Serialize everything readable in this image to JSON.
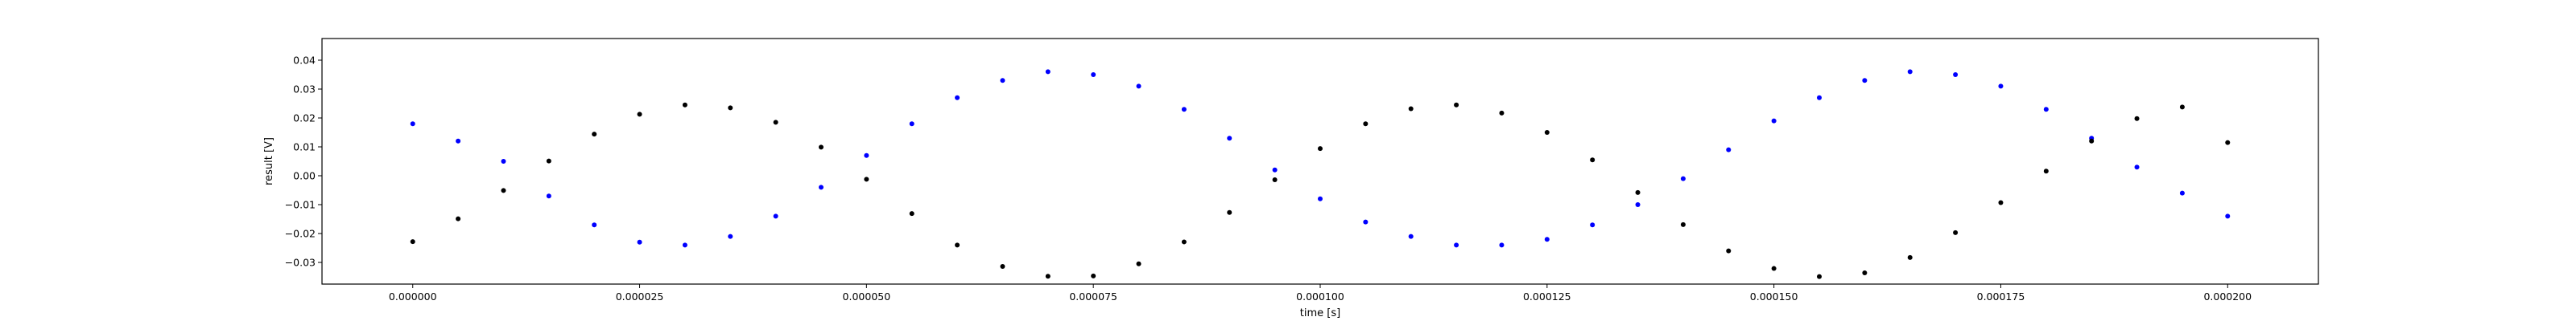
{
  "chart_data": {
    "type": "scatter",
    "title": "",
    "xlabel": "time [s]",
    "ylabel": "result [V]",
    "xlim": [
      -1e-05,
      0.00021
    ],
    "ylim": [
      -0.0375,
      0.0475
    ],
    "xticks": [
      0.0,
      2.5e-05,
      5e-05,
      7.5e-05,
      0.0001,
      0.000125,
      0.00015,
      0.000175,
      0.0002
    ],
    "xtick_labels": [
      "0.000000",
      "0.000025",
      "0.000050",
      "0.000075",
      "0.000100",
      "0.000125",
      "0.000150",
      "0.000175",
      "0.000200"
    ],
    "yticks": [
      -0.03,
      -0.02,
      -0.01,
      0.0,
      0.01,
      0.02,
      0.03,
      0.04
    ],
    "ytick_labels": [
      "−0.03",
      "−0.02",
      "−0.01",
      "0.00",
      "0.01",
      "0.02",
      "0.03",
      "0.04"
    ],
    "grid": false,
    "legend": "none",
    "series": [
      {
        "color": "#0000ff",
        "marker": "dot",
        "x": [
          0.0,
          5e-06,
          1e-05,
          1.5e-05,
          2e-05,
          2.5e-05,
          3e-05,
          3.5e-05,
          4e-05,
          4.5e-05,
          5e-05,
          5.5e-05,
          6e-05,
          6.5e-05,
          7e-05,
          7.5e-05,
          8e-05,
          8.5e-05,
          9e-05,
          9.5e-05,
          0.0001,
          0.000105,
          0.00011,
          0.000115,
          0.00012,
          0.000125,
          0.00013,
          0.000135,
          0.00014,
          0.000145,
          0.00015,
          0.000155,
          0.00016,
          0.000165,
          0.00017,
          0.000175,
          0.00018,
          0.000185,
          0.00019,
          0.000195,
          0.0002
        ],
        "y": [
          0.018,
          0.012,
          0.005,
          -0.007,
          -0.017,
          -0.023,
          -0.024,
          -0.021,
          -0.014,
          -0.004,
          0.007,
          0.018,
          0.027,
          0.033,
          0.036,
          0.035,
          0.031,
          0.023,
          0.013,
          0.002,
          -0.008,
          -0.016,
          -0.021,
          -0.024,
          -0.024,
          -0.022,
          -0.017,
          -0.01,
          -0.001,
          0.009,
          0.019,
          0.027,
          0.033,
          0.036,
          0.035,
          0.031,
          0.023,
          0.013,
          0.003,
          -0.006,
          -0.014
        ]
      },
      {
        "color": "#000000",
        "marker": "dot",
        "x": [
          0.0,
          5e-06,
          1e-05,
          1.5e-05,
          2e-05,
          2.5e-05,
          3e-05,
          3.5e-05,
          4e-05,
          4.5e-05,
          5e-05,
          5.5e-05,
          6e-05,
          6.5e-05,
          7e-05,
          7.5e-05,
          8e-05,
          8.5e-05,
          9e-05,
          9.5e-05,
          0.0001,
          0.000105,
          0.00011,
          0.000115,
          0.00012,
          0.000125,
          0.00013,
          0.000135,
          0.00014,
          0.000145,
          0.00015,
          0.000155,
          0.00016,
          0.000165,
          0.00017,
          0.000175,
          0.00018,
          0.000185,
          0.00019,
          0.000195,
          0.0002
        ],
        "y": [
          -0.0228,
          -0.0149,
          -0.0051,
          0.0051,
          0.0144,
          0.0213,
          0.0245,
          0.0235,
          0.0185,
          0.0099,
          -0.0012,
          -0.0131,
          -0.024,
          -0.0314,
          -0.0348,
          -0.0347,
          -0.0305,
          -0.0229,
          -0.0127,
          -0.0014,
          0.0094,
          0.018,
          0.0232,
          0.0245,
          0.0217,
          0.015,
          0.0055,
          -0.0058,
          -0.0169,
          -0.026,
          -0.0321,
          -0.0349,
          -0.0336,
          -0.0283,
          -0.0197,
          -0.0093,
          0.0016,
          0.012,
          0.0198,
          0.0238,
          0.0115
        ]
      }
    ]
  }
}
